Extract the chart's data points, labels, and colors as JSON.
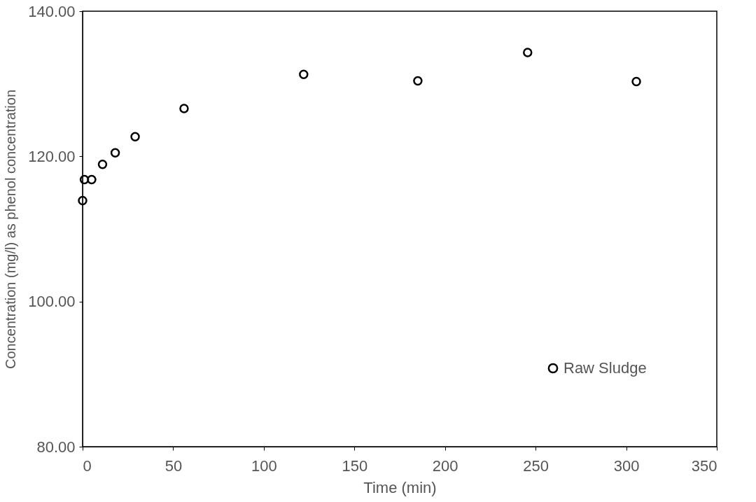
{
  "chart_data": {
    "type": "scatter",
    "xlabel": "Time (min)",
    "ylabel": "Concentration (mg/l) as phenol concentration",
    "x": [
      0,
      1,
      5,
      11,
      18,
      29,
      56,
      122,
      185,
      245.6,
      305.6
    ],
    "series": [
      {
        "name": "Raw Sludge",
        "color": "#000000",
        "values": [
          113.9,
          116.8,
          116.8,
          118.9,
          120.5,
          122.7,
          126.6,
          131.3,
          130.4,
          134.3,
          130.3
        ]
      }
    ],
    "xlim": [
      0,
      350
    ],
    "xticks": [
      0,
      50,
      100,
      150,
      200,
      250,
      300,
      350
    ],
    "ylim": [
      80,
      140
    ],
    "yticks": [
      {
        "value": 80,
        "label": "80.00"
      },
      {
        "value": 100,
        "label": "100.00"
      },
      {
        "value": 120,
        "label": "120.00"
      },
      {
        "value": 140,
        "label": "140.00"
      }
    ],
    "grid": false,
    "legend": "bottom right",
    "marker": "circle"
  }
}
